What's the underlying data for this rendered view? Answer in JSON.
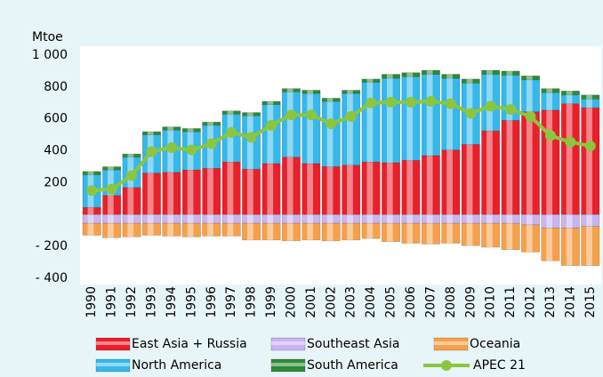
{
  "chart_data": {
    "type": "bar",
    "y_label": "Mtoe",
    "categories": [
      "1990",
      "1991",
      "1992",
      "1993",
      "1994",
      "1995",
      "1996",
      "1997",
      "1998",
      "1999",
      "2000",
      "2001",
      "2002",
      "2003",
      "2004",
      "2005",
      "2006",
      "2007",
      "2008",
      "2009",
      "2010",
      "2011",
      "2012",
      "2013",
      "2014",
      "2015"
    ],
    "ylim": [
      -400,
      1000
    ],
    "yticks": [
      {
        "value": 1000,
        "label": "1 000"
      },
      800,
      600,
      400,
      200,
      {
        "value": -200,
        "label": "- 200"
      },
      {
        "value": -400,
        "label": "- 400"
      }
    ],
    "stacked": true,
    "series": [
      {
        "name": "East Asia + Russia",
        "color": "#e8202a",
        "values": [
          45,
          120,
          170,
          260,
          265,
          280,
          290,
          330,
          285,
          320,
          360,
          320,
          300,
          310,
          330,
          325,
          340,
          370,
          405,
          440,
          525,
          590,
          645,
          655,
          695,
          670
        ]
      },
      {
        "name": "Southeast Asia",
        "color": "#c9b3f0",
        "values": [
          -55,
          -55,
          -55,
          -55,
          -55,
          -55,
          -55,
          -55,
          -55,
          -55,
          -55,
          -55,
          -55,
          -55,
          -55,
          -55,
          -55,
          -55,
          -55,
          -55,
          -55,
          -55,
          -65,
          -85,
          -85,
          -75
        ]
      },
      {
        "name": "Oceania",
        "color": "#f6a04b",
        "values": [
          -75,
          -90,
          -85,
          -75,
          -80,
          -85,
          -80,
          -80,
          -105,
          -105,
          -110,
          -105,
          -110,
          -105,
          -95,
          -115,
          -125,
          -130,
          -125,
          -140,
          -150,
          -165,
          -170,
          -205,
          -235,
          -245
        ]
      },
      {
        "name": "North America",
        "color": "#35b8ea",
        "values": [
          205,
          160,
          190,
          240,
          265,
          240,
          270,
          300,
          335,
          370,
          410,
          440,
          410,
          450,
          500,
          530,
          525,
          510,
          450,
          385,
          355,
          285,
          200,
          110,
          55,
          55
        ]
      },
      {
        "name": "South America",
        "color": "#2f8a35",
        "values": [
          20,
          20,
          20,
          20,
          20,
          20,
          20,
          20,
          20,
          20,
          20,
          20,
          20,
          20,
          20,
          25,
          25,
          25,
          25,
          25,
          25,
          25,
          25,
          25,
          25,
          25
        ]
      },
      {
        "name": "APEC 21",
        "color": "#8cc63f",
        "type": "line",
        "values": [
          150,
          160,
          245,
          395,
          420,
          405,
          445,
          515,
          485,
          560,
          625,
          625,
          570,
          615,
          700,
          705,
          705,
          710,
          695,
          635,
          680,
          660,
          615,
          495,
          455,
          430
        ]
      }
    ]
  }
}
